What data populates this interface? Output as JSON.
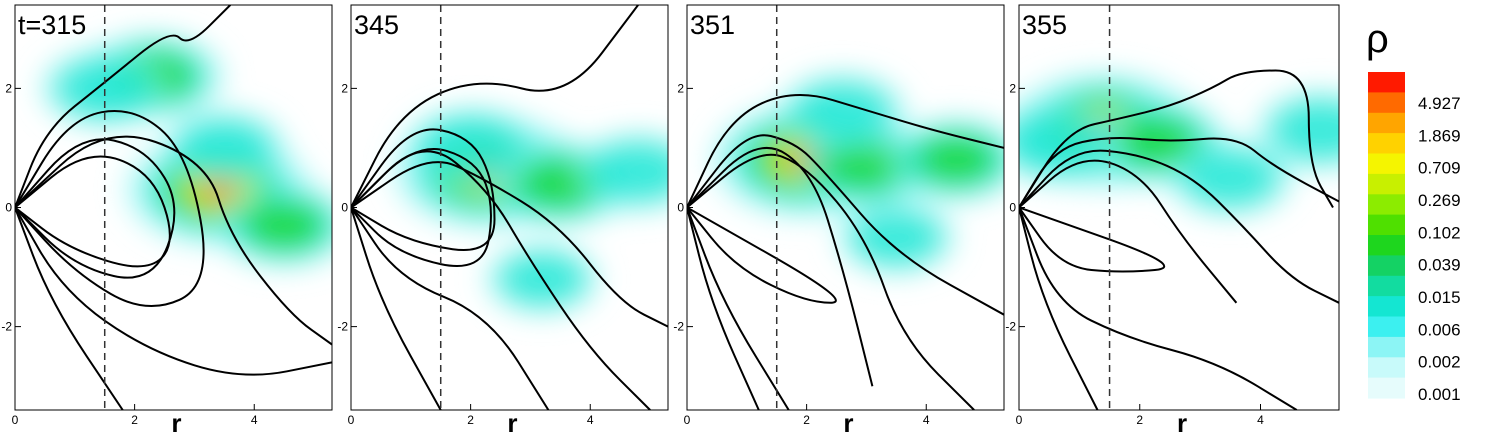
{
  "chart_data": {
    "type": "heatmap",
    "variable_symbol": "ρ",
    "colorbar": {
      "tick_labels": [
        "4.927",
        "1.869",
        "0.709",
        "0.269",
        "0.102",
        "0.039",
        "0.015",
        "0.006",
        "0.002",
        "0.001"
      ],
      "colors": [
        "#ff1a00",
        "#ff6a00",
        "#ffa500",
        "#ffd200",
        "#f5f500",
        "#c8f000",
        "#8cec00",
        "#4fe000",
        "#1ed61e",
        "#14d264",
        "#12dca0",
        "#14e6d2",
        "#3cf0f0",
        "#8cf5f5",
        "#c8fafa",
        "#e6fcfc"
      ]
    },
    "x_axis": {
      "label": "r",
      "range": [
        0,
        5.3
      ],
      "ticks": [
        0,
        2,
        4
      ]
    },
    "y_axis": {
      "label": "",
      "range": [
        -3.4,
        3.4
      ],
      "ticks": [
        -2,
        0,
        2
      ]
    },
    "reference_line_x": 1.5,
    "panels": [
      {
        "label": "t=315",
        "density_blobs": [
          [
            3.4,
            0.3,
            0.95
          ],
          [
            2.3,
            2.2,
            0.5
          ],
          [
            1.5,
            2.0,
            0.35
          ],
          [
            4.5,
            -0.3,
            0.45
          ],
          [
            3.5,
            1.0,
            0.3
          ]
        ]
      },
      {
        "label": "345",
        "density_blobs": [
          [
            2.3,
            0.6,
            1.0
          ],
          [
            3.5,
            0.4,
            0.5
          ],
          [
            2.0,
            1.0,
            0.4
          ],
          [
            4.8,
            0.6,
            0.35
          ],
          [
            3.2,
            -1.2,
            0.2
          ]
        ]
      },
      {
        "label": "351",
        "density_blobs": [
          [
            2.0,
            0.8,
            1.0
          ],
          [
            3.0,
            0.7,
            0.5
          ],
          [
            4.5,
            0.8,
            0.45
          ],
          [
            2.6,
            1.6,
            0.35
          ],
          [
            3.5,
            -0.5,
            0.25
          ]
        ]
      },
      {
        "label": "355",
        "density_blobs": [
          [
            1.4,
            1.3,
            1.0
          ],
          [
            2.3,
            1.1,
            0.45
          ],
          [
            0.6,
            1.1,
            0.4
          ],
          [
            5.0,
            1.3,
            0.35
          ],
          [
            3.5,
            0.5,
            0.3
          ]
        ]
      }
    ],
    "field_lines": [
      [
        [
          [
            0.0,
            0.0
          ],
          [
            0.5,
            1.3
          ],
          [
            1.5,
            2.1
          ],
          [
            2.6,
            3.0
          ],
          [
            2.9,
            2.7
          ],
          [
            3.6,
            3.4
          ]
        ],
        [
          [
            0.0,
            0.0
          ],
          [
            0.9,
            1.5
          ],
          [
            2.0,
            1.7
          ],
          [
            2.9,
            0.9
          ],
          [
            3.3,
            -1.3
          ],
          [
            2.2,
            -1.8
          ],
          [
            1.0,
            -1.1
          ],
          [
            0.0,
            0.0
          ]
        ],
        [
          [
            0.0,
            0.0
          ],
          [
            1.1,
            1.25
          ],
          [
            2.2,
            1.0
          ],
          [
            2.8,
            0.0
          ],
          [
            2.3,
            -1.3
          ],
          [
            1.0,
            -1.0
          ],
          [
            0.0,
            0.0
          ]
        ],
        [
          [
            0.0,
            0.0
          ],
          [
            1.2,
            1.0
          ],
          [
            2.3,
            0.6
          ],
          [
            2.7,
            -0.6
          ],
          [
            2.2,
            -1.1
          ],
          [
            0.9,
            -0.7
          ],
          [
            0.0,
            0.0
          ]
        ],
        [
          [
            0.0,
            0.0
          ],
          [
            1.5,
            1.4
          ],
          [
            3.2,
            0.8
          ],
          [
            3.6,
            -0.5
          ],
          [
            4.6,
            -1.8
          ],
          [
            5.3,
            -2.3
          ]
        ],
        [
          [
            0.0,
            0.0
          ],
          [
            0.8,
            -1.4
          ],
          [
            2.2,
            -2.4
          ],
          [
            3.8,
            -2.9
          ],
          [
            5.3,
            -2.6
          ]
        ],
        [
          [
            0.0,
            0.0
          ],
          [
            0.6,
            -1.6
          ],
          [
            1.8,
            -3.4
          ]
        ]
      ],
      [
        [
          [
            0.0,
            0.0
          ],
          [
            0.8,
            1.6
          ],
          [
            2.1,
            2.2
          ],
          [
            3.6,
            1.8
          ],
          [
            4.8,
            3.4
          ]
        ],
        [
          [
            0.0,
            0.0
          ],
          [
            1.0,
            1.4
          ],
          [
            2.0,
            1.2
          ],
          [
            2.4,
            0.4
          ],
          [
            2.4,
            -0.8
          ],
          [
            1.0,
            -0.6
          ],
          [
            0.0,
            0.0
          ]
        ],
        [
          [
            0.0,
            0.0
          ],
          [
            1.1,
            1.1
          ],
          [
            2.1,
            0.8
          ],
          [
            2.4,
            0.0
          ],
          [
            2.2,
            -1.1
          ],
          [
            0.8,
            -0.8
          ],
          [
            0.0,
            0.0
          ]
        ],
        [
          [
            0.0,
            0.0
          ],
          [
            1.3,
            0.9
          ],
          [
            2.2,
            0.5
          ],
          [
            3.5,
            -0.3
          ],
          [
            4.5,
            -1.6
          ],
          [
            5.3,
            -2.0
          ]
        ],
        [
          [
            0.0,
            0.0
          ],
          [
            1.2,
            1.2
          ],
          [
            2.3,
            0.3
          ],
          [
            3.0,
            -0.9
          ],
          [
            4.0,
            -2.4
          ],
          [
            5.0,
            -3.4
          ]
        ],
        [
          [
            0.0,
            0.0
          ],
          [
            0.8,
            -1.2
          ],
          [
            2.3,
            -1.8
          ],
          [
            3.3,
            -3.4
          ]
        ],
        [
          [
            0.0,
            0.0
          ],
          [
            0.5,
            -1.6
          ],
          [
            1.5,
            -3.4
          ]
        ]
      ],
      [
        [
          [
            0.0,
            0.0
          ],
          [
            0.7,
            1.5
          ],
          [
            1.8,
            2.0
          ],
          [
            3.1,
            1.6
          ],
          [
            4.1,
            1.3
          ],
          [
            5.3,
            1.0
          ]
        ],
        [
          [
            0.0,
            0.0
          ],
          [
            1.0,
            1.3
          ],
          [
            1.8,
            1.1
          ],
          [
            2.3,
            0.6
          ],
          [
            3.5,
            -0.8
          ],
          [
            5.3,
            -1.8
          ]
        ],
        [
          [
            0.0,
            0.0
          ],
          [
            1.2,
            1.0
          ],
          [
            2.0,
            0.7
          ],
          [
            3.0,
            -0.5
          ],
          [
            3.6,
            -2.2
          ],
          [
            4.8,
            -3.4
          ]
        ],
        [
          [
            0.0,
            0.0
          ],
          [
            1.2,
            1.2
          ],
          [
            2.1,
            0.6
          ],
          [
            2.6,
            -1.0
          ],
          [
            3.1,
            -3.0
          ]
        ],
        [
          [
            0.0,
            0.0
          ],
          [
            0.8,
            -1.0
          ],
          [
            2.0,
            -1.6
          ],
          [
            2.8,
            -1.6
          ],
          [
            0.0,
            0.0
          ]
        ],
        [
          [
            0.0,
            0.0
          ],
          [
            0.6,
            -1.6
          ],
          [
            1.7,
            -3.4
          ]
        ],
        [
          [
            0.0,
            0.0
          ],
          [
            0.4,
            -1.6
          ],
          [
            1.2,
            -3.4
          ]
        ]
      ],
      [
        [
          [
            0.0,
            0.0
          ],
          [
            0.8,
            1.3
          ],
          [
            1.7,
            1.5
          ],
          [
            2.5,
            1.7
          ],
          [
            3.2,
            2.0
          ],
          [
            3.7,
            2.3
          ],
          [
            4.8,
            2.3
          ],
          [
            4.8,
            0.7
          ],
          [
            5.2,
            0.0
          ]
        ],
        [
          [
            0.0,
            0.0
          ],
          [
            0.6,
            1.0
          ],
          [
            1.5,
            1.2
          ],
          [
            2.5,
            1.1
          ],
          [
            3.6,
            1.2
          ],
          [
            4.2,
            0.7
          ],
          [
            5.3,
            0.1
          ]
        ],
        [
          [
            0.0,
            0.0
          ],
          [
            0.9,
            1.0
          ],
          [
            2.0,
            0.9
          ],
          [
            2.9,
            0.5
          ],
          [
            3.7,
            -0.3
          ],
          [
            4.5,
            -1.2
          ],
          [
            5.3,
            -1.6
          ]
        ],
        [
          [
            0.0,
            0.0
          ],
          [
            1.0,
            0.9
          ],
          [
            2.0,
            0.6
          ],
          [
            2.7,
            -0.5
          ],
          [
            3.6,
            -1.6
          ]
        ],
        [
          [
            0.0,
            0.0
          ],
          [
            0.7,
            -1.0
          ],
          [
            1.7,
            -1.1
          ],
          [
            2.8,
            -1.0
          ],
          [
            0.0,
            0.0
          ]
        ],
        [
          [
            0.0,
            0.0
          ],
          [
            0.6,
            -1.6
          ],
          [
            1.8,
            -2.2
          ],
          [
            3.3,
            -2.6
          ],
          [
            4.6,
            -3.4
          ]
        ],
        [
          [
            0.0,
            0.0
          ],
          [
            0.4,
            -1.6
          ],
          [
            1.3,
            -3.4
          ]
        ]
      ]
    ]
  }
}
